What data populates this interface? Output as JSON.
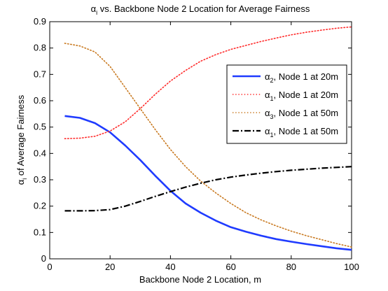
{
  "chart_data": {
    "type": "line",
    "title": {
      "sym": "α",
      "sub": "i",
      "rest": " vs. Backbone Node 2 Location for Average Fairness"
    },
    "xlabel": "Backbone Node 2 Location, m",
    "ylabel": {
      "sym": "α",
      "sub": "i",
      "rest": " of Average Fairness"
    },
    "xlim": [
      0,
      100
    ],
    "ylim": [
      0,
      0.9
    ],
    "xticks": [
      0,
      20,
      40,
      60,
      80,
      100
    ],
    "yticks": [
      0,
      0.1,
      0.2,
      0.3,
      0.4,
      0.5,
      0.6,
      0.7,
      0.8,
      0.9
    ],
    "xtick_labels": [
      "0",
      "20",
      "40",
      "60",
      "80",
      "100"
    ],
    "ytick_labels": [
      "0",
      "0.1",
      "0.2",
      "0.3",
      "0.4",
      "0.5",
      "0.6",
      "0.7",
      "0.8",
      "0.9"
    ],
    "grid": false,
    "legend_position": "right",
    "x": [
      5,
      10,
      15,
      20,
      25,
      30,
      35,
      40,
      45,
      50,
      55,
      60,
      65,
      70,
      75,
      80,
      85,
      90,
      95,
      100
    ],
    "series": [
      {
        "name": {
          "sym": "α",
          "sub": "2",
          "rest": ", Node 1 at 20m"
        },
        "color": "#1f3bff",
        "style": "solid",
        "values": [
          0.542,
          0.535,
          0.515,
          0.48,
          0.43,
          0.375,
          0.315,
          0.258,
          0.21,
          0.175,
          0.145,
          0.12,
          0.103,
          0.088,
          0.075,
          0.065,
          0.056,
          0.048,
          0.04,
          0.034
        ]
      },
      {
        "name": {
          "sym": "α",
          "sub": "1",
          "rest": ", Node 1 at 20m"
        },
        "color": "#ff2a2a",
        "style": "dotted",
        "values": [
          0.456,
          0.458,
          0.465,
          0.485,
          0.52,
          0.57,
          0.625,
          0.675,
          0.715,
          0.75,
          0.775,
          0.795,
          0.81,
          0.825,
          0.838,
          0.85,
          0.86,
          0.868,
          0.875,
          0.88
        ]
      },
      {
        "name": {
          "sym": "α",
          "sub": "3",
          "rest": ", Node 1 at 50m"
        },
        "color": "#c8781e",
        "style": "dotted",
        "values": [
          0.818,
          0.808,
          0.785,
          0.73,
          0.65,
          0.57,
          0.49,
          0.415,
          0.35,
          0.295,
          0.25,
          0.21,
          0.175,
          0.148,
          0.125,
          0.105,
          0.088,
          0.073,
          0.058,
          0.045
        ]
      },
      {
        "name": {
          "sym": "α",
          "sub": "1",
          "rest": ", Node 1 at 50m"
        },
        "color": "#000000",
        "style": "dashdot",
        "values": [
          0.182,
          0.182,
          0.183,
          0.187,
          0.2,
          0.218,
          0.237,
          0.255,
          0.272,
          0.287,
          0.3,
          0.31,
          0.318,
          0.325,
          0.331,
          0.336,
          0.34,
          0.344,
          0.347,
          0.35
        ]
      }
    ]
  }
}
